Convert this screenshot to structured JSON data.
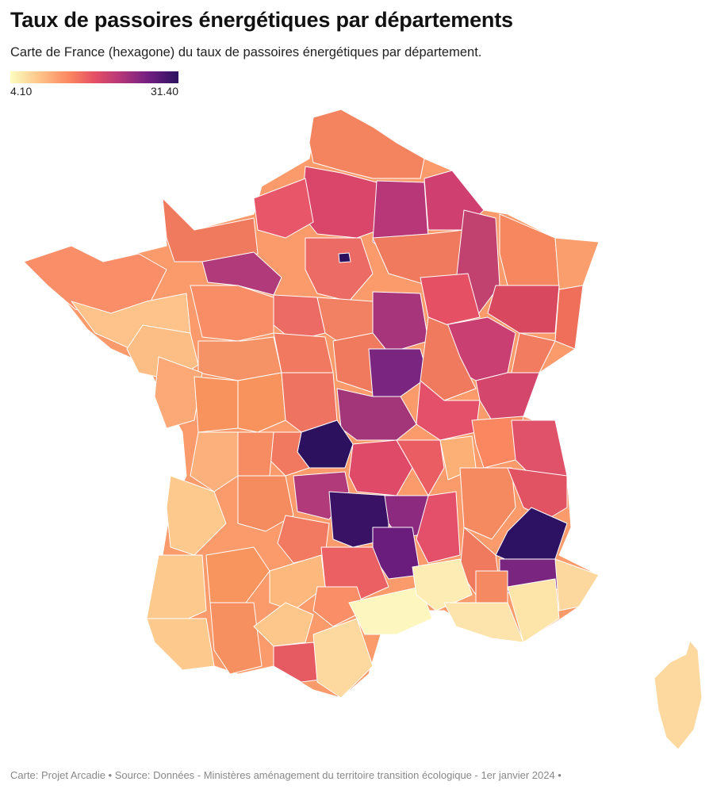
{
  "header": {
    "title": "Taux de passoires énergétiques par départements",
    "subtitle": "Carte de France (hexagone) du taux de passoires énergétiques par département."
  },
  "legend": {
    "min_label": "4.10",
    "max_label": "31.40",
    "min_value": 4.1,
    "max_value": 31.4,
    "colors": [
      "#fcfdbf",
      "#fec287",
      "#fb8761",
      "#e55064",
      "#b73779",
      "#721f81",
      "#2c115f"
    ]
  },
  "map": {
    "region": "France (hexagone)",
    "metric": "Taux de passoires énergétiques",
    "scale": "sequential magma"
  },
  "footer": {
    "credit": "Carte: Projet Arcadie • Source: Données - Ministères aménagement du territoire transition écologique - 1er janvier 2024 •"
  }
}
